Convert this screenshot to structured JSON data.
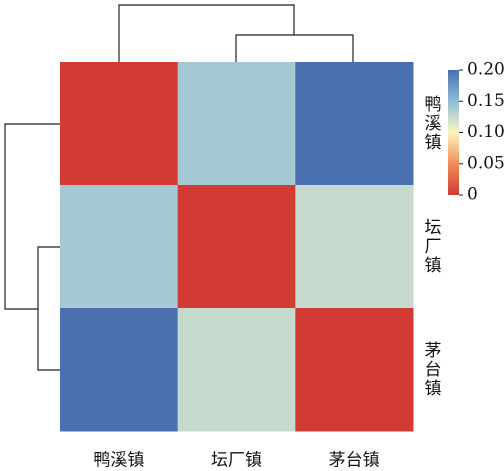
{
  "chart_data": {
    "type": "heatmap",
    "x_categories": [
      "鸭溪镇",
      "坛厂镇",
      "茅台镇"
    ],
    "y_categories": [
      "鸭溪镇",
      "坛厂镇",
      "茅台镇"
    ],
    "z": [
      [
        0,
        0.14,
        0.2
      ],
      [
        0.14,
        0,
        0.125
      ],
      [
        0.2,
        0.125,
        0
      ]
    ],
    "zlim": [
      0,
      0.2
    ],
    "zticks": [
      0,
      {
        "value": 0.05,
        "label": "0.05"
      },
      {
        "value": 0.1,
        "label": "0.10"
      },
      0.15,
      {
        "value": 0.2,
        "label": "0.20"
      }
    ],
    "colors": [
      "#d13b34",
      "#f08d5a",
      "#fbf5c0",
      "#8fbdd8",
      "#4a70b0"
    ]
  }
}
